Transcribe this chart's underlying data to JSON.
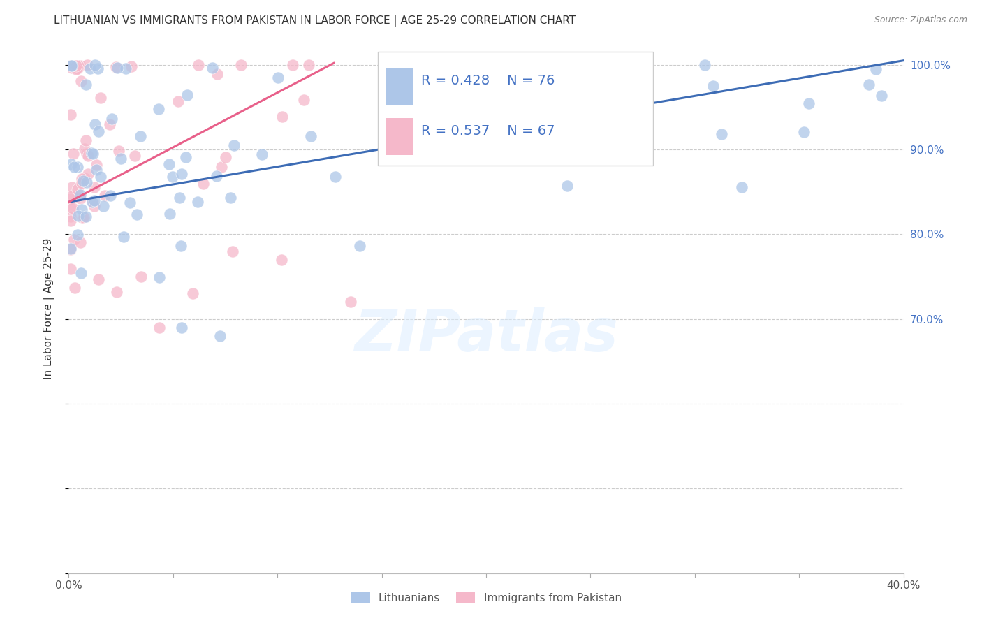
{
  "title": "LITHUANIAN VS IMMIGRANTS FROM PAKISTAN IN LABOR FORCE | AGE 25-29 CORRELATION CHART",
  "source": "Source: ZipAtlas.com",
  "ylabel": "In Labor Force | Age 25-29",
  "xmin": 0.0,
  "xmax": 0.4,
  "ymin": 0.4,
  "ymax": 1.025,
  "blue_R": 0.428,
  "blue_N": 76,
  "pink_R": 0.537,
  "pink_N": 67,
  "blue_color": "#adc6e8",
  "pink_color": "#f5b8ca",
  "blue_line_color": "#3d6cb5",
  "pink_line_color": "#e8608a",
  "right_tick_color": "#4472c4",
  "watermark": "ZIPatlas",
  "blue_line_x0": 0.0,
  "blue_line_y0": 0.838,
  "blue_line_x1": 0.4,
  "blue_line_y1": 1.005,
  "pink_line_x0": 0.0,
  "pink_line_y0": 0.838,
  "pink_line_x1": 0.127,
  "pink_line_y1": 1.002
}
